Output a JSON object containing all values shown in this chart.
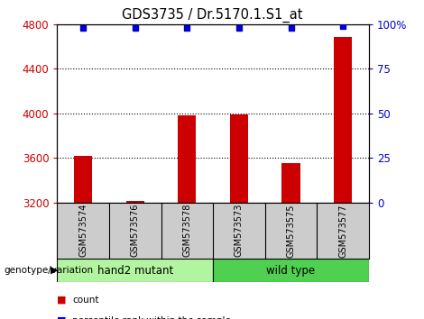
{
  "title": "GDS3735 / Dr.5170.1.S1_at",
  "samples": [
    "GSM573574",
    "GSM573576",
    "GSM573578",
    "GSM573573",
    "GSM573575",
    "GSM573577"
  ],
  "counts": [
    3620,
    3215,
    3985,
    3990,
    3555,
    4680
  ],
  "percentiles": [
    98,
    98,
    98,
    98,
    98,
    99
  ],
  "groups": [
    {
      "label": "hand2 mutant",
      "n": 3,
      "color": "#b2f5a0"
    },
    {
      "label": "wild type",
      "n": 3,
      "color": "#50d050"
    }
  ],
  "ylim_left": [
    3200,
    4800
  ],
  "yticks_left": [
    3200,
    3600,
    4000,
    4400,
    4800
  ],
  "ylim_right": [
    0,
    100
  ],
  "yticks_right": [
    0,
    25,
    50,
    75,
    100
  ],
  "bar_color": "#CC0000",
  "dot_color": "#0000CC",
  "bar_width": 0.35,
  "background_color": "#ffffff",
  "label_area_color": "#cccccc",
  "title_fontsize": 10.5,
  "tick_fontsize": 8.5,
  "sample_fontsize": 7,
  "group_fontsize": 8.5,
  "left_tick_color": "#CC0000",
  "right_tick_color": "#0000CC"
}
